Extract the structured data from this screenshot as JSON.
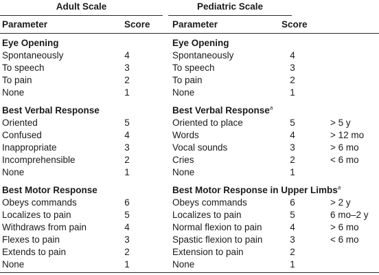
{
  "adult": {
    "title": "Adult Scale",
    "col_parameter": "Parameter",
    "col_score": "Score",
    "sections": [
      {
        "heading": "Eye Opening",
        "rows": [
          {
            "label": "Spontaneously",
            "score": "4"
          },
          {
            "label": "To speech",
            "score": "3"
          },
          {
            "label": "To pain",
            "score": "2"
          },
          {
            "label": "None",
            "score": "1"
          }
        ]
      },
      {
        "heading": "Best Verbal Response",
        "rows": [
          {
            "label": "Oriented",
            "score": "5"
          },
          {
            "label": "Confused",
            "score": "4"
          },
          {
            "label": "Inappropriate",
            "score": "3"
          },
          {
            "label": "Incomprehensible",
            "score": "2"
          },
          {
            "label": "None",
            "score": "1"
          }
        ]
      },
      {
        "heading": "Best Motor Response",
        "rows": [
          {
            "label": "Obeys commands",
            "score": "6"
          },
          {
            "label": "Localizes to pain",
            "score": "5"
          },
          {
            "label": "Withdraws from pain",
            "score": "4"
          },
          {
            "label": "Flexes to pain",
            "score": "3"
          },
          {
            "label": "Extends to pain",
            "score": "2"
          },
          {
            "label": "None",
            "score": "1"
          }
        ]
      }
    ]
  },
  "pediatric": {
    "title": "Pediatric Scale",
    "col_parameter": "Parameter",
    "col_score": "Score",
    "footnote_mark": "a",
    "sections": [
      {
        "heading": "Eye Opening",
        "rows": [
          {
            "label": "Spontaneously",
            "score": "4",
            "age": ""
          },
          {
            "label": "To speech",
            "score": "3",
            "age": ""
          },
          {
            "label": "To pain",
            "score": "2",
            "age": ""
          },
          {
            "label": "None",
            "score": "1",
            "age": ""
          }
        ]
      },
      {
        "heading": "Best Verbal Response",
        "rows": [
          {
            "label": "Oriented to place",
            "score": "5",
            "age": "> 5 y"
          },
          {
            "label": "Words",
            "score": "4",
            "age": "> 12 mo"
          },
          {
            "label": "Vocal sounds",
            "score": "3",
            "age": "> 6 mo"
          },
          {
            "label": "Cries",
            "score": "2",
            "age": "< 6 mo"
          },
          {
            "label": "None",
            "score": "1",
            "age": ""
          }
        ]
      },
      {
        "heading": "Best Motor Response in Upper Limbs",
        "rows": [
          {
            "label": "Obeys commands",
            "score": "6",
            "age": "> 2 y"
          },
          {
            "label": "Localizes to pain",
            "score": "5",
            "age": "6 mo–2 y"
          },
          {
            "label": "Normal flexion to pain",
            "score": "4",
            "age": "> 6 mo"
          },
          {
            "label": "Spastic flexion to pain",
            "score": "3",
            "age": "< 6 mo"
          },
          {
            "label": "Extension to pain",
            "score": "2",
            "age": ""
          },
          {
            "label": "None",
            "score": "1",
            "age": ""
          }
        ]
      }
    ]
  }
}
